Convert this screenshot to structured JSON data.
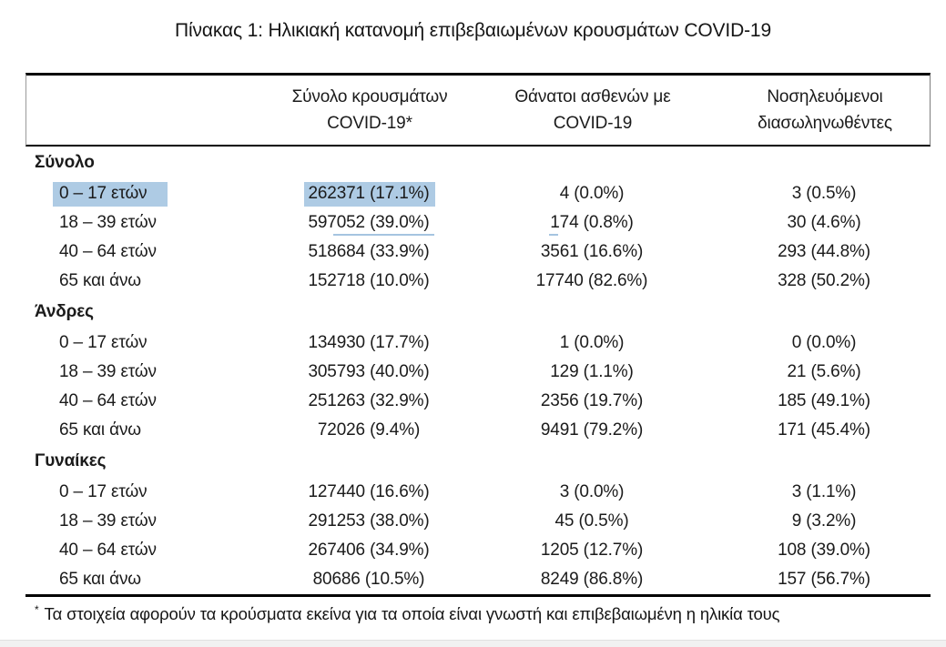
{
  "title": "Πίνακας 1: Ηλικιακή κατανομή επιβεβαιωμένων κρουσμάτων COVID-19",
  "table": {
    "header": {
      "cases": [
        "Σύνολο κρουσμάτων",
        "COVID-19*"
      ],
      "deaths": [
        "Θάνατοι ασθενών με",
        "COVID-19"
      ],
      "intubated": [
        "Νοσηλευόμενοι",
        "διασωληνωθέντες"
      ]
    },
    "sections": [
      {
        "label": "Σύνολο",
        "rows": [
          {
            "age": "0 – 17 ετών",
            "cases": "262371 (17.1%)",
            "deaths": "4 (0.0%)",
            "intubated": "3 (0.5%)"
          },
          {
            "age": "18 – 39 ετών",
            "cases": "597052 (39.0%)",
            "deaths": "174 (0.8%)",
            "intubated": "30 (4.6%)"
          },
          {
            "age": "40 – 64 ετών",
            "cases": "518684 (33.9%)",
            "deaths": "3561 (16.6%)",
            "intubated": "293 (44.8%)"
          },
          {
            "age": "65 και άνω",
            "cases": "152718 (10.0%)",
            "deaths": "17740 (82.6%)",
            "intubated": "328 (50.2%)"
          }
        ]
      },
      {
        "label": "Άνδρες",
        "rows": [
          {
            "age": "0 – 17 ετών",
            "cases": "134930 (17.7%)",
            "deaths": "1 (0.0%)",
            "intubated": "0 (0.0%)"
          },
          {
            "age": "18 – 39 ετών",
            "cases": "305793 (40.0%)",
            "deaths": "129 (1.1%)",
            "intubated": "21 (5.6%)"
          },
          {
            "age": "40 – 64 ετών",
            "cases": "251263 (32.9%)",
            "deaths": "2356 (19.7%)",
            "intubated": "185 (49.1%)"
          },
          {
            "age": "65 και άνω",
            "cases": "72026 (9.4%)",
            "deaths": "9491 (79.2%)",
            "intubated": "171 (45.4%)"
          }
        ]
      },
      {
        "label": "Γυναίκες",
        "rows": [
          {
            "age": "0 – 17 ετών",
            "cases": "127440 (16.6%)",
            "deaths": "3 (0.0%)",
            "intubated": "3 (1.1%)"
          },
          {
            "age": "18 – 39 ετών",
            "cases": "291253 (38.0%)",
            "deaths": "45 (0.5%)",
            "intubated": "9 (3.2%)"
          },
          {
            "age": "40 – 64 ετών",
            "cases": "267406 (34.9%)",
            "deaths": "1205 (12.7%)",
            "intubated": "108 (39.0%)"
          },
          {
            "age": "65 και άνω",
            "cases": "80686 (10.5%)",
            "deaths": "8249 (86.8%)",
            "intubated": "157 (56.7%)"
          }
        ]
      }
    ],
    "footnote_marker": "*",
    "footnote": "Τα στοιχεία αφορούν τα κρούσματα εκείνα για τα οποία είναι γνωστή και επιβεβαιωμένη η ηλικία τους"
  },
  "selection": {
    "highlight_color": "#aecbe4",
    "highlighted_cells": [
      "Σύνολο > 0 – 17 ετών > age label",
      "Σύνολο > 0 – 17 ετών > cases value"
    ],
    "underline_artifact_cells": [
      "Σύνολο > 18 – 39 ετών > cases value (partial)",
      "Σύνολο > 18 – 39 ετών > deaths value (start)"
    ]
  }
}
